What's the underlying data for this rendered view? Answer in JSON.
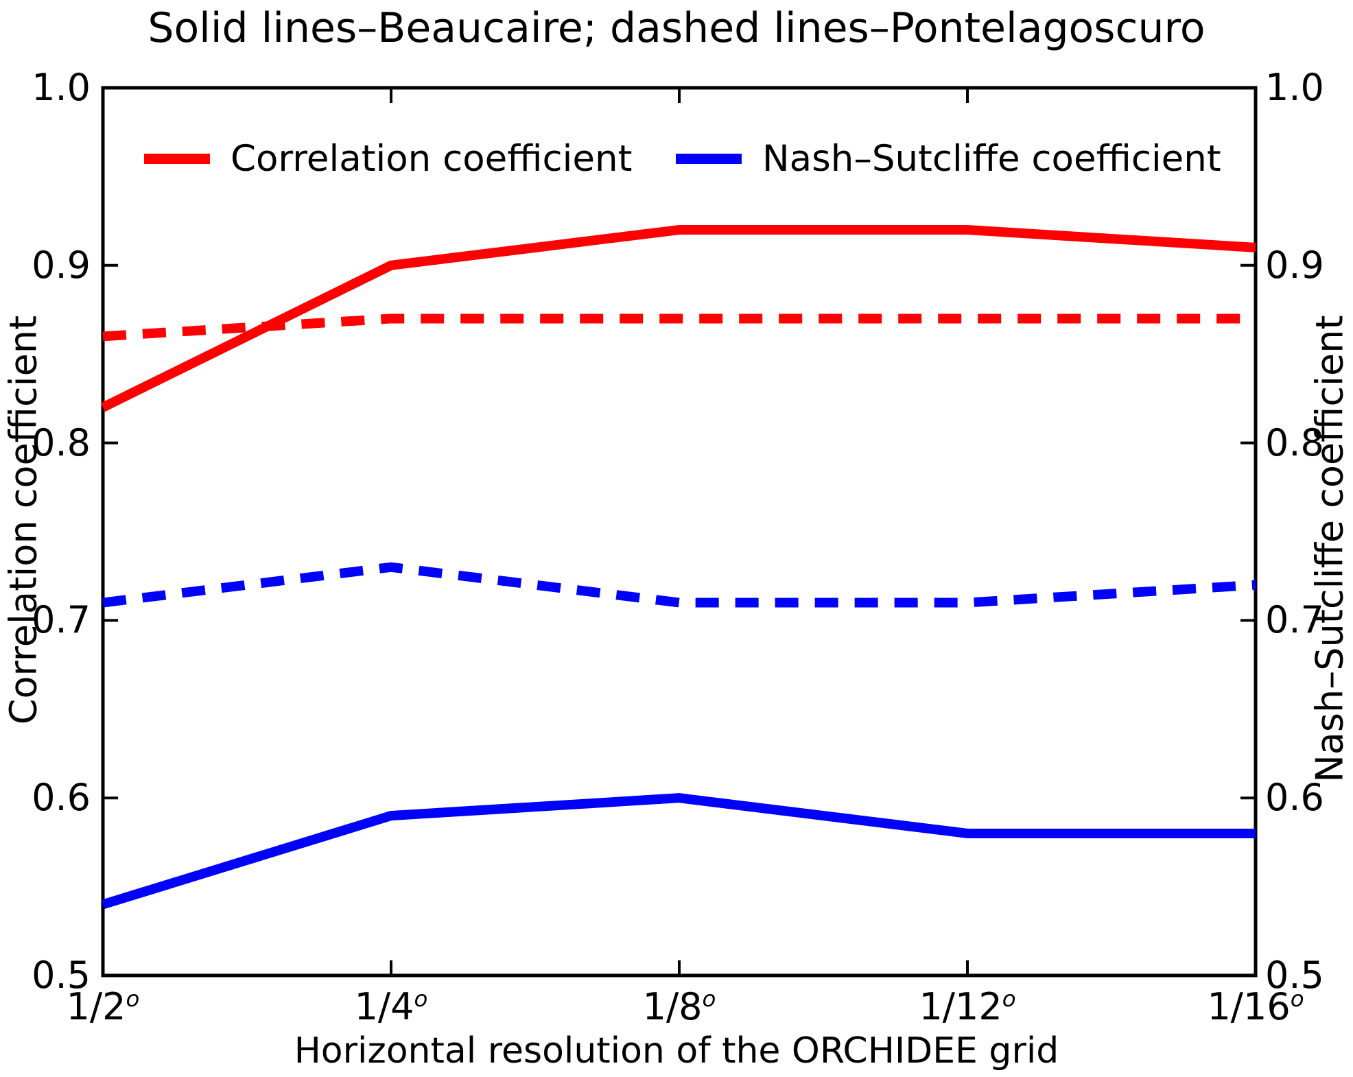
{
  "title": "Solid lines–Beaucaire; dashed lines–Pontelagoscuro",
  "legend": {
    "items": [
      {
        "label": "Correlation coefficient",
        "color": "#ff0000"
      },
      {
        "label": "Nash–Sutcliffe coefficient",
        "color": "#0000ff"
      }
    ]
  },
  "axes": {
    "x_label": "Horizontal resolution of the ORCHIDEE grid",
    "x_tick_bases": [
      "1/2",
      "1/4",
      "1/8",
      "1/12",
      "1/16"
    ],
    "x_tick_superscript": "o",
    "y_ticks": [
      "1.0",
      "0.9",
      "0.8",
      "0.7",
      "0.6",
      "0.5"
    ],
    "y_left_label": "Correlation coefficient",
    "y_right_label": "Nash–Sutcliffe coefficient"
  },
  "chart_data": {
    "type": "line",
    "title": "Solid lines–Beaucaire; dashed lines–Pontelagoscuro",
    "categories": [
      "1/2°",
      "1/4°",
      "1/8°",
      "1/12°",
      "1/16°"
    ],
    "series": [
      {
        "name": "Correlation coefficient — Beaucaire (solid)",
        "color": "#ff0000",
        "style": "solid",
        "axis": "left",
        "values": [
          0.82,
          0.9,
          0.92,
          0.92,
          0.91
        ]
      },
      {
        "name": "Correlation coefficient — Pontelagoscuro (dashed)",
        "color": "#ff0000",
        "style": "dashed",
        "axis": "left",
        "values": [
          0.86,
          0.87,
          0.87,
          0.87,
          0.87
        ]
      },
      {
        "name": "Nash–Sutcliffe coefficient — Beaucaire (solid)",
        "color": "#0000ff",
        "style": "solid",
        "axis": "right",
        "values": [
          0.54,
          0.59,
          0.6,
          0.58,
          0.58
        ]
      },
      {
        "name": "Nash–Sutcliffe coefficient — Pontelagoscuro (dashed)",
        "color": "#0000ff",
        "style": "dashed",
        "axis": "right",
        "values": [
          0.71,
          0.73,
          0.71,
          0.71,
          0.72
        ]
      }
    ],
    "xlabel": "Horizontal resolution of the ORCHIDEE grid",
    "ylabel_left": "Correlation coefficient",
    "ylabel_right": "Nash–Sutcliffe coefficient",
    "ylim": [
      0.5,
      1.0
    ],
    "y_tick_step": 0.1,
    "grid": false,
    "legend_position": "upper left inside"
  }
}
